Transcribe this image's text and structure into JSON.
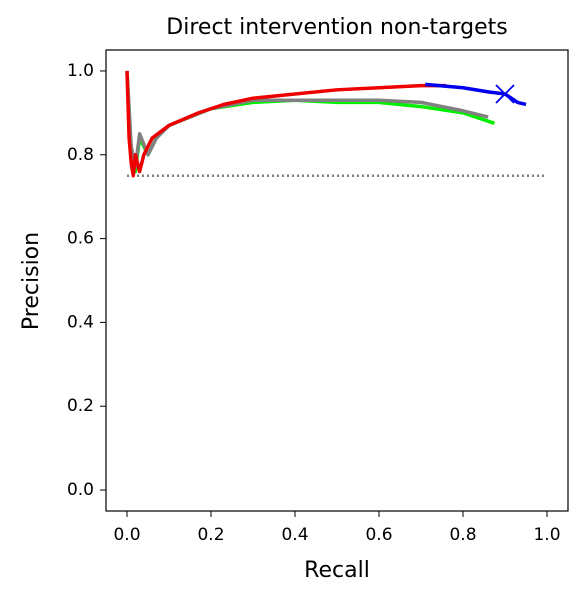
{
  "chart_data": {
    "type": "line",
    "title": "Direct intervention non-targets",
    "x_label": "Recall",
    "y_label": "Precision",
    "xlim": [
      -0.05,
      1.05
    ],
    "ylim": [
      -0.05,
      1.05
    ],
    "xticks": [
      {
        "value": 0,
        "label": "0.0"
      },
      {
        "value": 0.2,
        "label": "0.2"
      },
      {
        "value": 0.4,
        "label": "0.4"
      },
      {
        "value": 0.6,
        "label": "0.6"
      },
      {
        "value": 0.8,
        "label": "0.8"
      },
      {
        "value": 1,
        "label": "1.0"
      }
    ],
    "yticks": [
      {
        "value": 0,
        "label": "0.0"
      },
      {
        "value": 0.2,
        "label": "0.2"
      },
      {
        "value": 0.4,
        "label": "0.4"
      },
      {
        "value": 0.6,
        "label": "0.6"
      },
      {
        "value": 0.8,
        "label": "0.8"
      },
      {
        "value": 1,
        "label": "1.0"
      }
    ],
    "series": [
      {
        "color": "#808080",
        "dash": "dotted",
        "x": [
          0,
          1
        ],
        "values": [
          0.75,
          0.75
        ]
      },
      {
        "color": "#00ee00",
        "x": [
          0,
          0.01,
          0.02,
          0.03,
          0.05,
          0.07,
          0.1,
          0.15,
          0.2,
          0.3,
          0.4,
          0.5,
          0.6,
          0.7,
          0.8,
          0.875
        ],
        "values": [
          1.0,
          0.8,
          0.76,
          0.84,
          0.8,
          0.84,
          0.87,
          0.89,
          0.91,
          0.925,
          0.93,
          0.925,
          0.925,
          0.915,
          0.9,
          0.875
        ]
      },
      {
        "color": "#808080",
        "x": [
          0,
          0.01,
          0.02,
          0.03,
          0.05,
          0.07,
          0.1,
          0.15,
          0.2,
          0.3,
          0.4,
          0.5,
          0.6,
          0.7,
          0.75,
          0.8,
          0.86
        ],
        "values": [
          1.0,
          0.82,
          0.77,
          0.85,
          0.8,
          0.84,
          0.87,
          0.89,
          0.91,
          0.93,
          0.93,
          0.93,
          0.93,
          0.925,
          0.915,
          0.905,
          0.89
        ]
      },
      {
        "color": "#ee0000",
        "x": [
          0,
          0.005,
          0.01,
          0.015,
          0.02,
          0.03,
          0.04,
          0.06,
          0.1,
          0.17,
          0.23,
          0.3,
          0.4,
          0.5,
          0.6,
          0.7,
          0.76
        ],
        "values": [
          1.0,
          0.84,
          0.78,
          0.75,
          0.8,
          0.76,
          0.8,
          0.84,
          0.87,
          0.9,
          0.92,
          0.935,
          0.945,
          0.955,
          0.96,
          0.965,
          0.965
        ]
      },
      {
        "color": "#0000ee",
        "x": [
          0.71,
          0.8,
          0.86,
          0.9,
          0.93,
          0.95
        ],
        "values": [
          0.968,
          0.96,
          0.95,
          0.945,
          0.925,
          0.92
        ]
      }
    ],
    "marker": {
      "x": 0.9,
      "y": 0.945,
      "color": "#0000ee"
    }
  }
}
